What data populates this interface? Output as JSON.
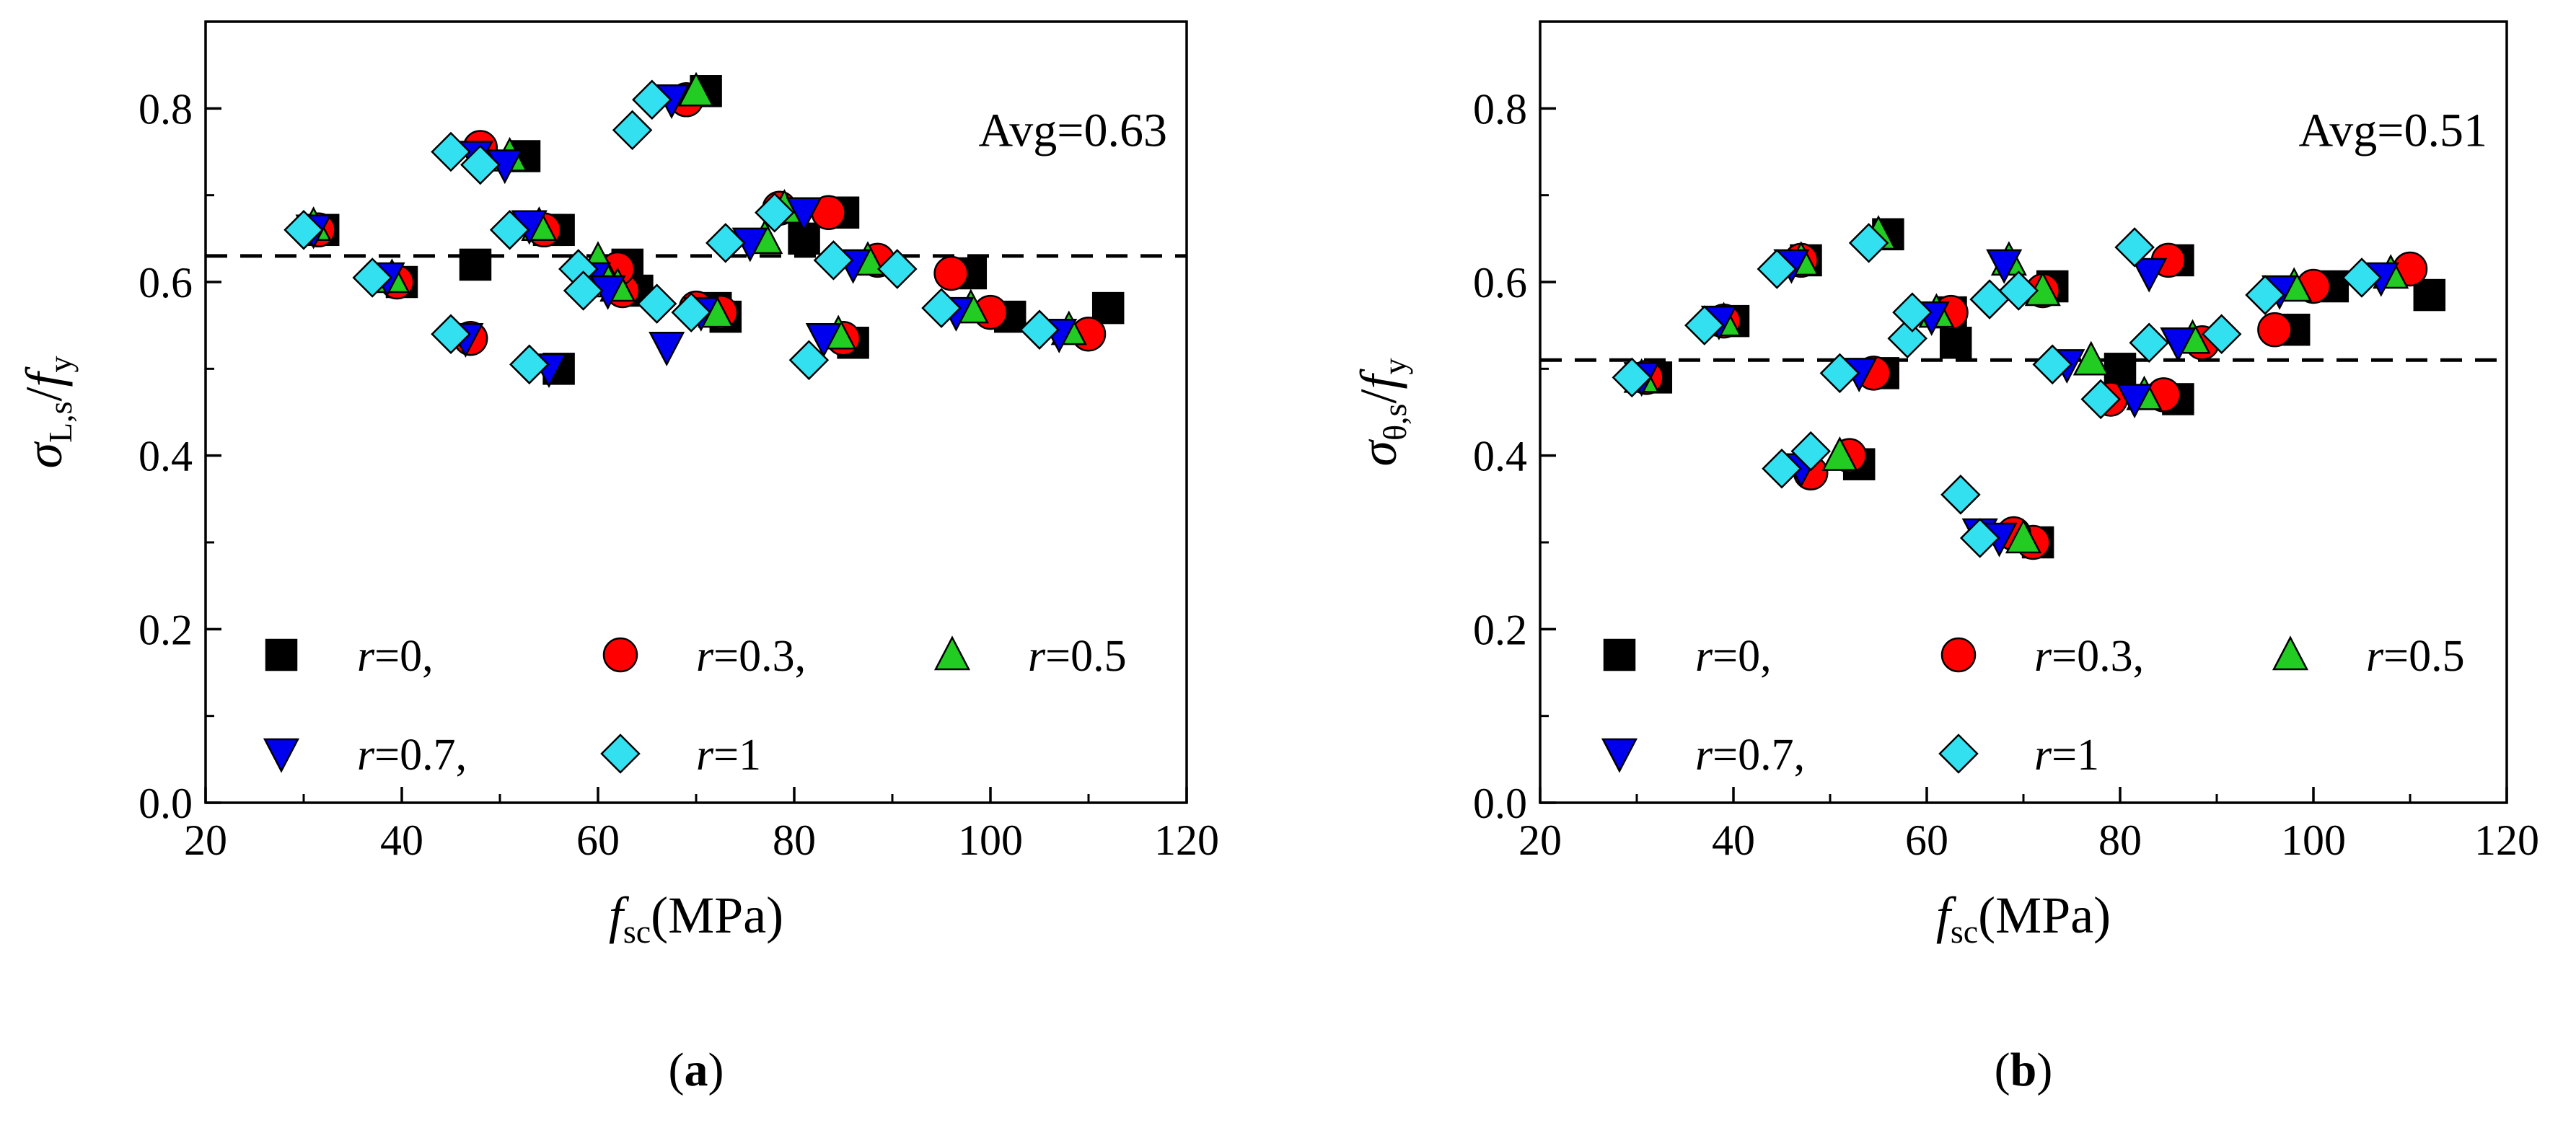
{
  "chart_data": [
    {
      "type": "scatter",
      "panel_label": {
        "open": "(",
        "letter": "a",
        "close": ")"
      },
      "ylabel": {
        "sym": "σ",
        "sub": "L,s",
        "slash": "/",
        "sym2": "f",
        "sub2": "y"
      },
      "xlabel": {
        "sym": "f",
        "sub": "sc",
        "unit": "(MPa)"
      },
      "xlim": [
        20,
        120
      ],
      "ylim": [
        0.0,
        0.9
      ],
      "xticks": [
        "20",
        "40",
        "60",
        "80",
        "100",
        "120"
      ],
      "yticks": [
        "0.0",
        "0.2",
        "0.4",
        "0.6",
        "0.8"
      ],
      "annotation": "Avg=0.63",
      "avg_line": 0.63,
      "series": [
        {
          "name": "r=0,",
          "label_pre": "r",
          "label_post": "=0,",
          "marker": "square",
          "color": "#000000",
          "x": [
            32,
            40,
            47.5,
            55,
            56,
            64,
            63,
            73,
            72,
            71,
            81,
            86,
            85,
            98,
            102,
            112,
            56,
            52.5
          ],
          "y": [
            0.66,
            0.6,
            0.62,
            0.66,
            0.5,
            0.59,
            0.62,
            0.56,
            0.57,
            0.82,
            0.65,
            0.53,
            0.68,
            0.61,
            0.56,
            0.57,
            0.66,
            0.745
          ]
        },
        {
          "name": "r=0.3,",
          "label_pre": "r",
          "label_post": "=0.3,",
          "marker": "circle",
          "color": "#ff0000",
          "x": [
            31.5,
            39.5,
            47,
            48,
            54.5,
            62.5,
            70,
            72.5,
            78.5,
            83.5,
            85,
            88.5,
            96,
            100,
            110,
            62,
            69
          ],
          "y": [
            0.66,
            0.6,
            0.535,
            0.755,
            0.66,
            0.59,
            0.57,
            0.565,
            0.685,
            0.68,
            0.535,
            0.625,
            0.61,
            0.565,
            0.54,
            0.615,
            0.81
          ]
        },
        {
          "name": "r=0.5",
          "label_pre": "r",
          "label_post": "=0.5",
          "marker": "triangle-up",
          "color": "#22cc22",
          "x": [
            31,
            39,
            51,
            54,
            60,
            61,
            70,
            72,
            77,
            79,
            84.5,
            87.5,
            98,
            108,
            62
          ],
          "y": [
            0.665,
            0.605,
            0.745,
            0.665,
            0.625,
            0.6,
            0.82,
            0.565,
            0.65,
            0.685,
            0.54,
            0.625,
            0.57,
            0.545,
            0.595
          ]
        },
        {
          "name": "r=0.7,",
          "label_pre": "r",
          "label_post": "=0.7,",
          "marker": "triangle-down",
          "color": "#0000ee",
          "x": [
            31,
            38.5,
            46.5,
            47.5,
            50.5,
            53,
            55,
            59.5,
            61,
            67,
            67.5,
            70.5,
            75.5,
            81,
            83,
            86,
            96.5,
            107
          ],
          "y": [
            0.66,
            0.605,
            0.535,
            0.745,
            0.735,
            0.665,
            0.5,
            0.605,
            0.59,
            0.525,
            0.81,
            0.565,
            0.645,
            0.68,
            0.535,
            0.62,
            0.565,
            0.54
          ]
        },
        {
          "name": "r=1",
          "label_pre": "r",
          "label_post": "=1",
          "marker": "diamond",
          "color": "#33e0f0",
          "x": [
            30,
            37,
            45,
            45,
            48,
            51,
            53,
            58,
            58.5,
            63.5,
            65.5,
            66,
            69.5,
            73,
            78,
            81.5,
            84,
            90.5,
            95,
            105
          ],
          "y": [
            0.66,
            0.605,
            0.75,
            0.54,
            0.735,
            0.66,
            0.505,
            0.615,
            0.59,
            0.775,
            0.81,
            0.575,
            0.565,
            0.645,
            0.68,
            0.51,
            0.625,
            0.615,
            0.57,
            0.545
          ]
        }
      ]
    },
    {
      "type": "scatter",
      "panel_label": {
        "open": "(",
        "letter": "b",
        "close": ")"
      },
      "ylabel": {
        "sym": "σ",
        "sub": "θ,s",
        "slash": "/",
        "sym2": "f",
        "sub2": "y"
      },
      "xlabel": {
        "sym": "f",
        "sub": "sc",
        "unit": "(MPa)"
      },
      "xlim": [
        20,
        120
      ],
      "ylim": [
        0.0,
        0.9
      ],
      "xticks": [
        "20",
        "40",
        "60",
        "80",
        "100",
        "120"
      ],
      "yticks": [
        "0.0",
        "0.2",
        "0.4",
        "0.6",
        "0.8"
      ],
      "annotation": "Avg=0.51",
      "avg_line": 0.51,
      "series": [
        {
          "name": "r=0,",
          "label_pre": "r",
          "label_post": "=0,",
          "marker": "square",
          "color": "#000000",
          "x": [
            32,
            40,
            47.5,
            53,
            55.5,
            63,
            62.5,
            71.5,
            73,
            80,
            86,
            86,
            98,
            102,
            112,
            56
          ],
          "y": [
            0.49,
            0.555,
            0.625,
            0.39,
            0.495,
            0.53,
            0.565,
            0.3,
            0.595,
            0.5,
            0.465,
            0.625,
            0.545,
            0.595,
            0.585,
            0.655
          ]
        },
        {
          "name": "r=0.3,",
          "label_pre": "r",
          "label_post": "=0.3,",
          "marker": "circle",
          "color": "#ff0000",
          "x": [
            31,
            39,
            47,
            48,
            52,
            54.5,
            62.5,
            71,
            72,
            69,
            79,
            84.5,
            85,
            88.5,
            96,
            100,
            110
          ],
          "y": [
            0.49,
            0.555,
            0.625,
            0.38,
            0.4,
            0.495,
            0.565,
            0.3,
            0.59,
            0.31,
            0.465,
            0.47,
            0.625,
            0.53,
            0.545,
            0.595,
            0.615
          ]
        },
        {
          "name": "r=0.5",
          "label_pre": "r",
          "label_post": "=0.5",
          "marker": "triangle-up",
          "color": "#22cc22",
          "x": [
            30.5,
            39,
            47,
            51,
            55,
            61,
            68.5,
            70,
            72,
            77,
            82.5,
            87.5,
            98,
            108
          ],
          "y": [
            0.49,
            0.555,
            0.625,
            0.4,
            0.655,
            0.565,
            0.625,
            0.305,
            0.59,
            0.51,
            0.47,
            0.535,
            0.595,
            0.61
          ]
        },
        {
          "name": "r=0.7,",
          "label_pre": "r",
          "label_post": "=0.7,",
          "marker": "triangle-down",
          "color": "#0000ee",
          "x": [
            30.5,
            38.5,
            46,
            47,
            53,
            60.5,
            65.5,
            67.5,
            68,
            74.5,
            81.5,
            86,
            96.5,
            107,
            83
          ],
          "y": [
            0.49,
            0.555,
            0.62,
            0.385,
            0.495,
            0.56,
            0.31,
            0.305,
            0.62,
            0.505,
            0.465,
            0.53,
            0.59,
            0.605,
            0.61
          ]
        },
        {
          "name": "r=1",
          "label_pre": "r",
          "label_post": "=1",
          "marker": "diamond",
          "color": "#33e0f0",
          "x": [
            29.5,
            37,
            44.5,
            45,
            48,
            51,
            54,
            58,
            58.5,
            63.5,
            65.5,
            66.5,
            69.5,
            73,
            78,
            81.5,
            83,
            90.5,
            95,
            105
          ],
          "y": [
            0.49,
            0.55,
            0.615,
            0.385,
            0.405,
            0.495,
            0.645,
            0.535,
            0.565,
            0.355,
            0.305,
            0.58,
            0.59,
            0.505,
            0.465,
            0.64,
            0.53,
            0.54,
            0.585,
            0.605
          ]
        }
      ]
    }
  ]
}
